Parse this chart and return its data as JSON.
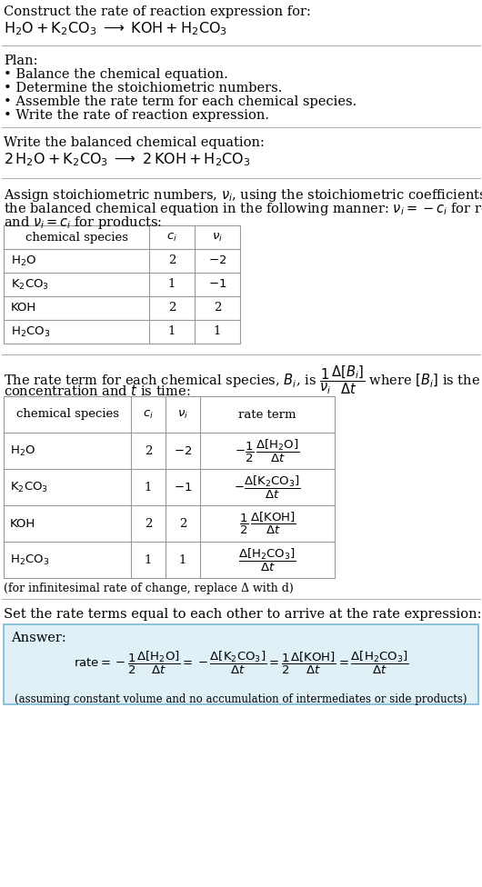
{
  "bg_color": "#ffffff",
  "text_color": "#000000",
  "title_line1": "Construct the rate of reaction expression for:",
  "plan_title": "Plan:",
  "plan_items": [
    "• Balance the chemical equation.",
    "• Determine the stoichiometric numbers.",
    "• Assemble the rate term for each chemical species.",
    "• Write the rate of reaction expression."
  ],
  "balanced_intro": "Write the balanced chemical equation:",
  "infinitesimal_note": "(for infinitesimal rate of change, replace Δ with d)",
  "set_equal_text": "Set the rate terms equal to each other to arrive at the rate expression:",
  "answer_label": "Answer:",
  "answer_box_facecolor": "#dff0f7",
  "answer_box_edgecolor": "#7ab8d4",
  "assuming_note": "(assuming constant volume and no accumulation of intermediates or side products)",
  "font_size": 10.5,
  "small_font": 9.5,
  "line_color": "#aaaaaa"
}
